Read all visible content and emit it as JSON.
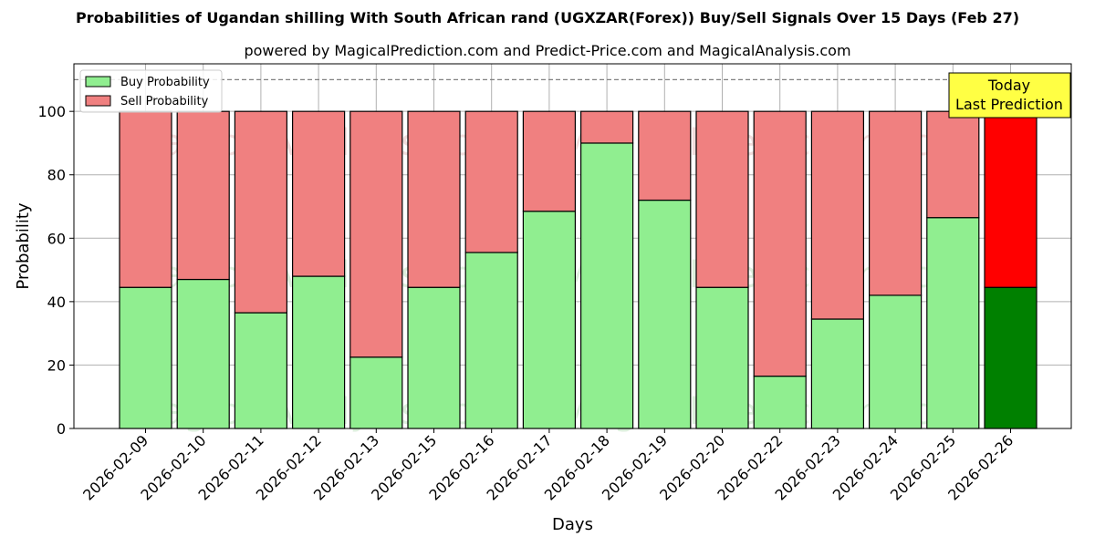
{
  "chart_data": {
    "type": "bar",
    "stacked": true,
    "title": "Probabilities of Ugandan shilling With South African rand (UGXZAR(Forex)) Buy/Sell Signals Over 15 Days (Feb 27)",
    "subtitle": "powered by MagicalPrediction.com and Predict-Price.com and MagicalAnalysis.com",
    "xlabel": "Days",
    "ylabel": "Probability",
    "ylim": [
      0,
      115
    ],
    "yticks": [
      0,
      20,
      40,
      60,
      80,
      100
    ],
    "grid": true,
    "legend_position": "top-left",
    "reference_line": {
      "y": 110,
      "style": "dashed"
    },
    "categories": [
      "2026-02-09",
      "2026-02-10",
      "2026-02-11",
      "2026-02-12",
      "2026-02-13",
      "2026-02-15",
      "2026-02-16",
      "2026-02-17",
      "2026-02-18",
      "2026-02-19",
      "2026-02-20",
      "2026-02-22",
      "2026-02-23",
      "2026-02-24",
      "2026-02-25",
      "2026-02-26"
    ],
    "series": [
      {
        "name": "Buy Probability",
        "color": "#90ee90",
        "highlight_color": "#008000",
        "values": [
          44.5,
          47.0,
          36.5,
          48.0,
          22.5,
          44.5,
          55.5,
          68.5,
          90.0,
          72.0,
          44.5,
          16.5,
          34.5,
          42.0,
          66.5,
          44.5
        ]
      },
      {
        "name": "Sell Probability",
        "color": "#f08080",
        "highlight_color": "#ff0000",
        "values": [
          55.5,
          53.0,
          63.5,
          52.0,
          77.5,
          55.5,
          44.5,
          31.5,
          10.0,
          28.0,
          55.5,
          83.5,
          65.5,
          58.0,
          33.5,
          55.5
        ]
      }
    ],
    "highlight_index": 15,
    "annotation": {
      "line1": "Today",
      "line2": "Last Prediction",
      "background": "#ffff44"
    },
    "watermarks": [
      "MagicalAnalysis.com",
      "MagicalPrediction.com"
    ]
  }
}
